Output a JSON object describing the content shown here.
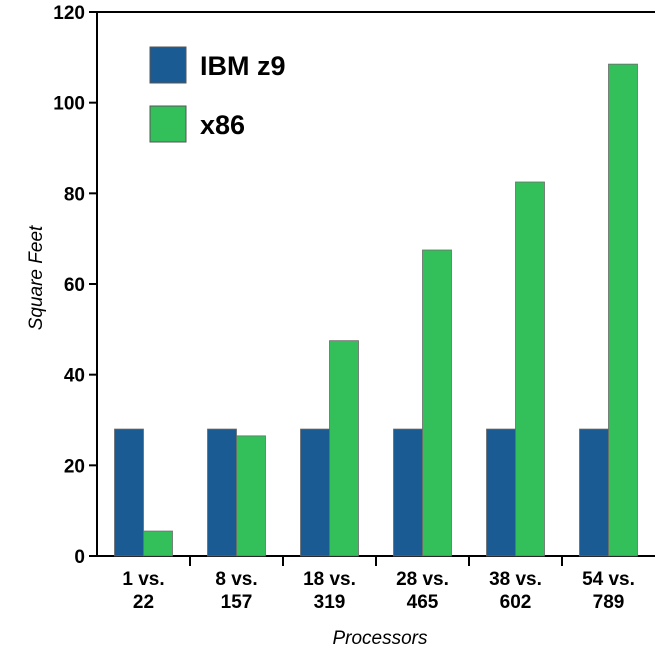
{
  "chart_data": {
    "type": "bar",
    "title": "",
    "xlabel": "Processors",
    "ylabel": "Square Feet",
    "ylim": [
      0,
      120
    ],
    "yticks": [
      0,
      20,
      40,
      60,
      80,
      100,
      120
    ],
    "categories": [
      [
        "1 vs.",
        "22"
      ],
      [
        "8 vs.",
        "157"
      ],
      [
        "18 vs.",
        "319"
      ],
      [
        "28 vs.",
        "465"
      ],
      [
        "38 vs.",
        "602"
      ],
      [
        "54 vs.",
        "789"
      ]
    ],
    "series": [
      {
        "name": "IBM z9",
        "color": "#1b5b93",
        "values": [
          28,
          28,
          28,
          28,
          28,
          28
        ]
      },
      {
        "name": "x86",
        "color": "#33c05a",
        "values": [
          5.5,
          26.5,
          47.5,
          67.5,
          82.5,
          108.5
        ]
      }
    ],
    "grid": false,
    "legend_position": "top-left"
  }
}
